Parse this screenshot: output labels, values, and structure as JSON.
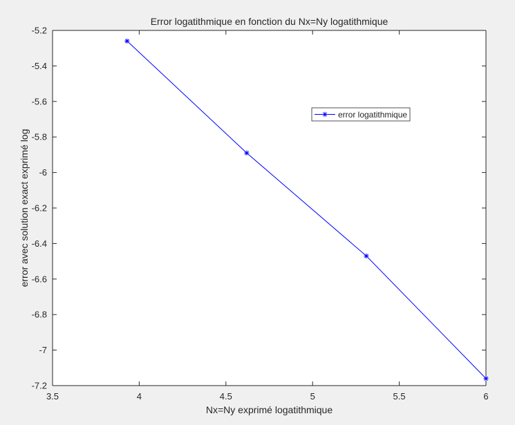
{
  "chart_data": {
    "type": "line",
    "title": "Error logatithmique en fonction du Nx=Ny logatithmique",
    "xlabel": "Nx=Ny exprimé logatithmique",
    "ylabel": "error avec solution exact exprimé log",
    "xlim": [
      3.5,
      6
    ],
    "ylim": [
      -7.2,
      -5.2
    ],
    "xticks": [
      3.5,
      4,
      4.5,
      5,
      5.5,
      6
    ],
    "xtick_labels": [
      "3.5",
      "4",
      "4.5",
      "5",
      "5.5",
      "6"
    ],
    "yticks": [
      -5.2,
      -5.4,
      -5.6,
      -5.8,
      -6,
      -6.2,
      -6.4,
      -6.6,
      -6.8,
      -7,
      -7.2
    ],
    "ytick_labels": [
      "-5.2",
      "-5.4",
      "-5.6",
      "-5.8",
      "-6",
      "-6.2",
      "-6.4",
      "-6.6",
      "-6.8",
      "-7",
      "-7.2"
    ],
    "grid": false,
    "legend_position": "upper-right",
    "series": [
      {
        "name": "error logatithmique",
        "color": "#0000ff",
        "marker": "asterisk",
        "x": [
          3.93,
          4.62,
          5.31,
          6.0
        ],
        "y": [
          -5.26,
          -5.89,
          -6.47,
          -7.16
        ]
      }
    ]
  }
}
